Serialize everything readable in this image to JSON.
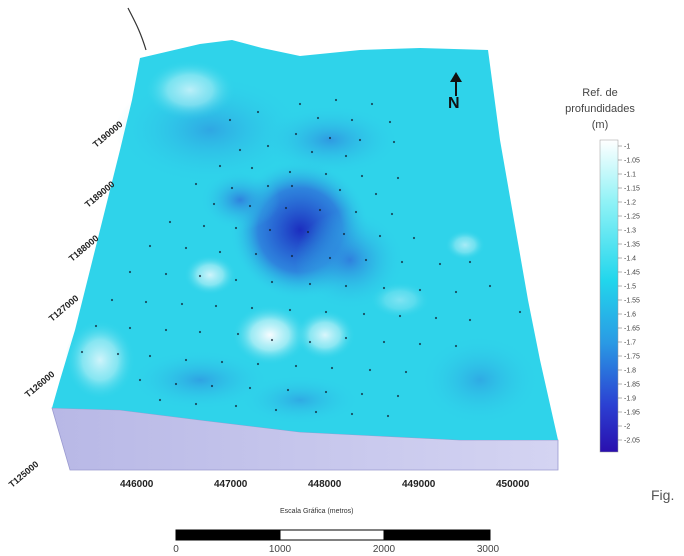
{
  "map": {
    "y_ticks": [
      "T190000",
      "T189000",
      "T188000",
      "T127000",
      "T126000",
      "T125000"
    ],
    "x_ticks": [
      "446000",
      "447000",
      "448000",
      "449000",
      "450000"
    ],
    "x_axis_title": "Escala Gráfica (metros)",
    "north_label": "N"
  },
  "legend": {
    "title_lines": [
      "Ref. de",
      "profundidades",
      "(m)"
    ],
    "ticks": [
      "-1",
      "-1.05",
      "-1.1",
      "-1.15",
      "-1.2",
      "-1.25",
      "-1.3",
      "-1.35",
      "-1.4",
      "-1.45",
      "-1.5",
      "-1.55",
      "-1.6",
      "-1.65",
      "-1.7",
      "-1.75",
      "-1.8",
      "-1.85",
      "-1.9",
      "-1.95",
      "-2",
      "-2.05"
    ],
    "colors": [
      "#ffffff",
      "#7ff0f5",
      "#22d9ee",
      "#2a8fe0",
      "#2b3fd0",
      "#2a10b0"
    ]
  },
  "scale_bar": {
    "labels": [
      "0",
      "1000",
      "2000",
      "3000"
    ]
  },
  "caption": "Fig.",
  "colors": {
    "surface_base": "#2fd3ea",
    "side_wall": "#c8c8ee",
    "deep": "#2636c8",
    "shallow": "#f4fbff"
  }
}
